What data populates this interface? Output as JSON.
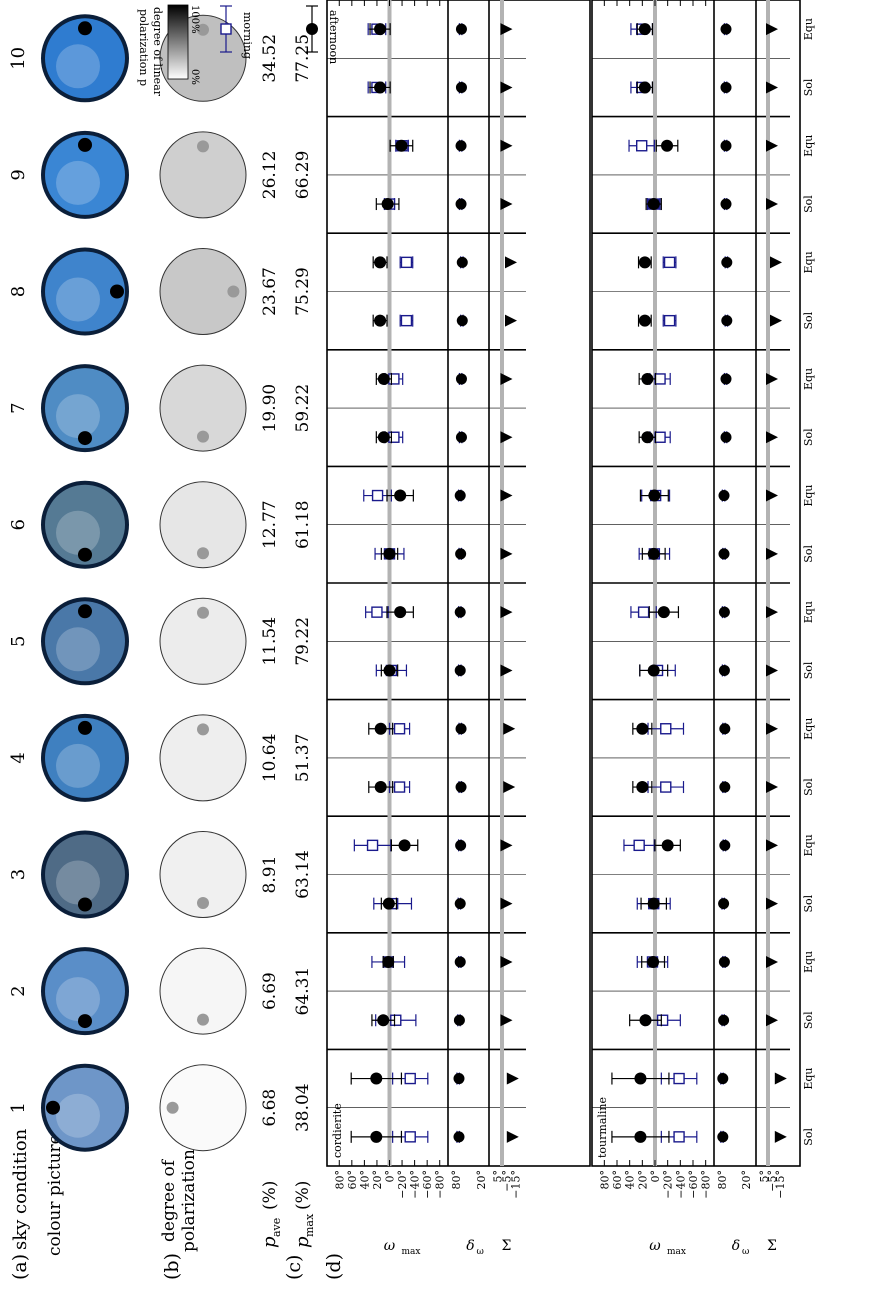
{
  "panels": {
    "a": "(a)",
    "b": "(b)",
    "c": "(c)",
    "d": "(d)"
  },
  "labels": {
    "sky_condition": "sky condition",
    "colour_picture": "colour picture",
    "dop_line1": "degree of",
    "dop_line2": "polarization p",
    "p_ave": "p",
    "p_ave_sub": "ave",
    "p_max": "p",
    "p_max_sub": "max",
    "percent": "(%)"
  },
  "scale_bar": {
    "top": "100%",
    "bottom": "0%",
    "label1": "degree of linear",
    "label2": "polarization p"
  },
  "legend": {
    "afternoon": "afternoon",
    "morning": "morning",
    "afternoon_color": "#000000",
    "morning_color": "#1a1a8c"
  },
  "crystals": {
    "top": "cordierite",
    "bottom": "tourmaline"
  },
  "sky_conditions": [
    {
      "n": "1",
      "p_ave": "6.68",
      "p_max": "38.04",
      "tone": "#6e96c8",
      "sun": "top",
      "pol": "#fafafa"
    },
    {
      "n": "2",
      "p_ave": "6.69",
      "p_max": "64.31",
      "tone": "#5a8ec8",
      "sun": "left",
      "pol": "#f6f6f6"
    },
    {
      "n": "3",
      "p_ave": "8.91",
      "p_max": "63.14",
      "tone": "#4f6b86",
      "sun": "left",
      "pol": "#f0f0f0"
    },
    {
      "n": "4",
      "p_ave": "10.64",
      "p_max": "51.37",
      "tone": "#3f80c0",
      "sun": "right",
      "pol": "#eeeeee"
    },
    {
      "n": "5",
      "p_ave": "11.54",
      "p_max": "79.22",
      "tone": "#4a78a8",
      "sun": "right",
      "pol": "#ececec"
    },
    {
      "n": "6",
      "p_ave": "12.77",
      "p_max": "61.18",
      "tone": "#557a94",
      "sun": "left",
      "pol": "#e6e6e6"
    },
    {
      "n": "7",
      "p_ave": "19.90",
      "p_max": "59.22",
      "tone": "#4f8cc4",
      "sun": "left",
      "pol": "#d8d8d8"
    },
    {
      "n": "8",
      "p_ave": "23.67",
      "p_max": "75.29",
      "tone": "#3f84cc",
      "sun": "bottom",
      "pol": "#c8c8c8"
    },
    {
      "n": "9",
      "p_ave": "26.12",
      "p_max": "66.29",
      "tone": "#3a86d4",
      "sun": "right",
      "pol": "#cfcfcf"
    },
    {
      "n": "10",
      "p_ave": "34.52",
      "p_max": "77.25",
      "tone": "#2f7cd0",
      "sun": "right",
      "pol": "#bfbfbf"
    }
  ],
  "chart_data": {
    "type": "scatter",
    "axes": {
      "omega_max": {
        "label": "ω",
        "label_sub": "max",
        "ticks": [
          "80°",
          "60°",
          "40°",
          "20°",
          "0°",
          "−20°",
          "−40°",
          "−60°",
          "−80°"
        ],
        "range": [
          90,
          -90
        ]
      },
      "delta_omega": {
        "label": "δ",
        "label_sub": "ω",
        "ticks": [
          "80°",
          "20°"
        ],
        "range": [
          90,
          0
        ]
      },
      "sigma": {
        "label": "Σ",
        "ticks": [
          "5°",
          "−5°",
          "−15°"
        ],
        "range": [
          10,
          -20
        ]
      }
    },
    "x_labels": [
      "Sol",
      "Equ"
    ],
    "series": [
      {
        "name": "afternoon",
        "marker": "filled-circle",
        "color": "#000000"
      },
      {
        "name": "morning",
        "marker": "open-square",
        "color": "#1a1a8c"
      }
    ],
    "blocks": [
      {
        "crystal": "cordierite",
        "omega_max": {
          "afternoon": [
            [
              21,
              40
            ],
            [
              21,
              40
            ],
            [
              10,
              18
            ],
            [
              2,
              8
            ],
            [
              1,
              12
            ],
            [
              -24,
              21
            ],
            [
              14,
              19
            ],
            [
              14,
              19
            ],
            [
              0,
              13
            ],
            [
              -17,
              21
            ],
            [
              0,
              13
            ],
            [
              -17,
              21
            ],
            [
              9,
              12
            ],
            [
              9,
              12
            ],
            [
              15,
              11
            ],
            [
              15,
              11
            ],
            [
              3,
              18
            ],
            [
              -19,
              18
            ],
            [
              15,
              16
            ],
            [
              15,
              16
            ],
            [
              0,
              8
            ],
            [
              -14,
              18
            ]
          ],
          "morning": [
            [
              -33,
              28
            ],
            [
              -33,
              28
            ],
            [
              -10,
              32
            ],
            [
              2,
              26
            ],
            [
              -5,
              30
            ],
            [
              27,
              29
            ],
            [
              -16,
              16
            ],
            [
              -16,
              16
            ],
            [
              -3,
              24
            ],
            [
              20,
              18
            ],
            [
              0,
              23
            ],
            [
              19,
              22
            ],
            [
              -7,
              14
            ],
            [
              -7,
              14
            ],
            [
              -27,
              10
            ],
            [
              -27,
              10
            ],
            [
              0,
              8
            ],
            [
              -20,
              10
            ],
            [
              20,
              14
            ],
            [
              20,
              14
            ],
            [
              -3,
              7
            ],
            [
              19,
              19
            ]
          ]
        },
        "delta_omega": {
          "afternoon": [
            73,
            73,
            72,
            70,
            70,
            69,
            68,
            68,
            70,
            70,
            69,
            70,
            67,
            67,
            65,
            65,
            68,
            68,
            67,
            67,
            63,
            63
          ],
          "morning": [
            75,
            75,
            73,
            71,
            72,
            71,
            70,
            70,
            71,
            71,
            70,
            71,
            69,
            69,
            66,
            66,
            69,
            69,
            69,
            69,
            64,
            64
          ],
          "spread": 3
        },
        "sigma": [
          -12,
          -12,
          -5,
          -5,
          -5,
          -5,
          -8,
          -8,
          -5,
          -5,
          -5,
          -5,
          -5,
          -5,
          -10,
          -10,
          -5,
          -5,
          -5,
          -5,
          -5,
          -5
        ]
      },
      {
        "crystal": "tourmaline",
        "omega_max": {
          "afternoon": [
            [
              23,
              45
            ],
            [
              23,
              45
            ],
            [
              15,
              25
            ],
            [
              3,
              18
            ],
            [
              2,
              20
            ],
            [
              -20,
              20
            ],
            [
              20,
              15
            ],
            [
              20,
              15
            ],
            [
              2,
              22
            ],
            [
              -14,
              23
            ],
            [
              2,
              18
            ],
            [
              1,
              22
            ],
            [
              12,
              13
            ],
            [
              12,
              13
            ],
            [
              16,
              10
            ],
            [
              16,
              10
            ],
            [
              2,
              12
            ],
            [
              -19,
              17
            ],
            [
              16,
              12
            ],
            [
              16,
              12
            ],
            [
              1,
              9
            ],
            [
              -16,
              12
            ]
          ],
          "morning": [
            [
              -38,
              28
            ],
            [
              -38,
              28
            ],
            [
              -12,
              28
            ],
            [
              4,
              24
            ],
            [
              2,
              26
            ],
            [
              25,
              24
            ],
            [
              -17,
              28
            ],
            [
              -17,
              28
            ],
            [
              -4,
              28
            ],
            [
              18,
              20
            ],
            [
              1,
              24
            ],
            [
              -1,
              22
            ],
            [
              -8,
              16
            ],
            [
              -8,
              16
            ],
            [
              -23,
              10
            ],
            [
              -23,
              10
            ],
            [
              2,
              10
            ],
            [
              21,
              20
            ],
            [
              21,
              17
            ],
            [
              21,
              17
            ],
            [
              1,
              5
            ],
            [
              20,
              18
            ]
          ]
        },
        "delta_omega": {
          "afternoon": [
            78,
            78,
            76,
            74,
            76,
            73,
            73,
            73,
            74,
            74,
            75,
            75,
            70,
            70,
            68,
            68,
            70,
            70,
            70,
            70,
            69,
            69
          ],
          "morning": [
            80,
            80,
            77,
            75,
            77,
            74,
            75,
            75,
            76,
            76,
            75,
            76,
            71,
            71,
            69,
            69,
            71,
            71,
            71,
            71,
            70,
            70
          ],
          "spread": 3
        },
        "sigma": [
          -16,
          -16,
          -5,
          -5,
          -5,
          -5,
          -5,
          -5,
          -5,
          -5,
          -5,
          -5,
          -5,
          -5,
          -10,
          -10,
          -5,
          -5,
          -5,
          -5,
          -5,
          -5
        ]
      }
    ]
  }
}
